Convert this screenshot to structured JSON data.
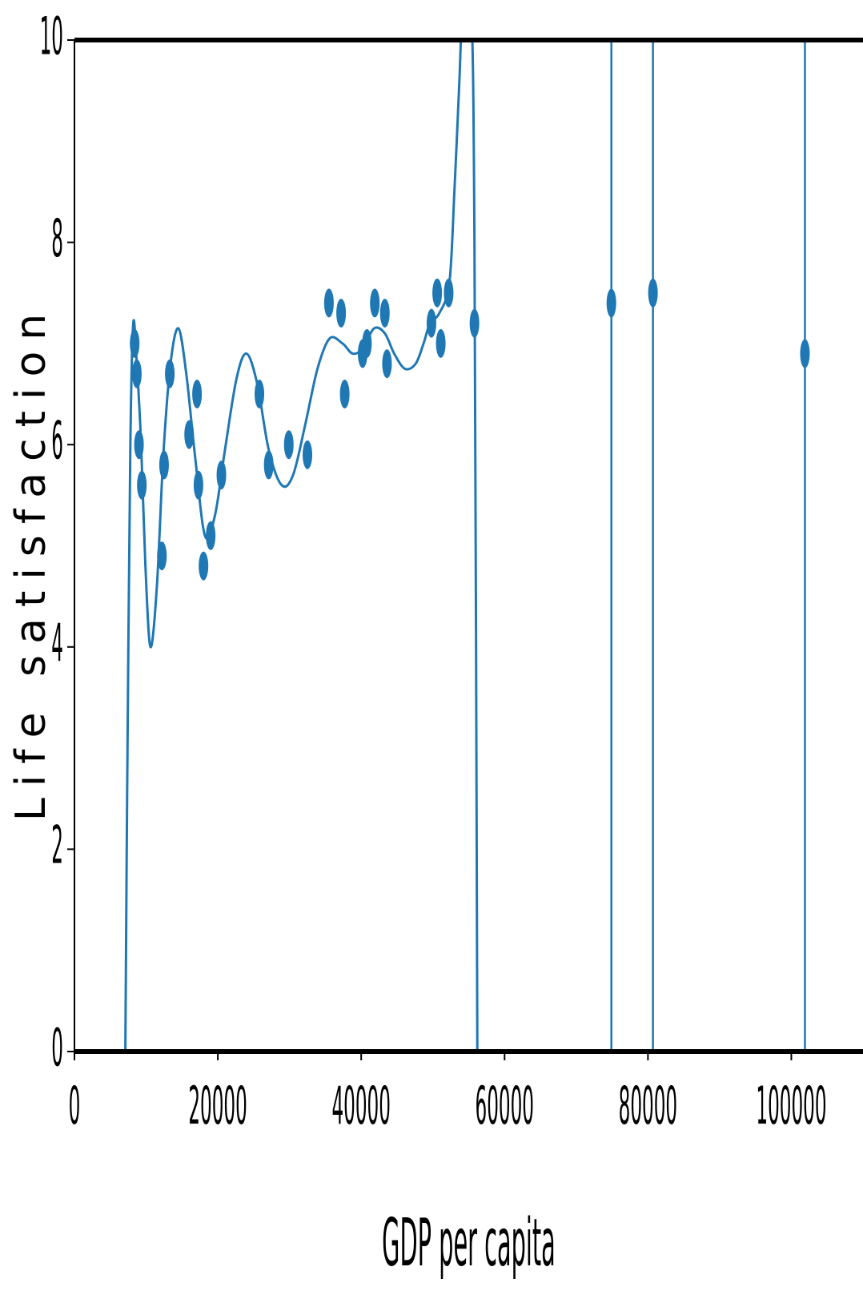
{
  "chart_data": {
    "type": "scatter",
    "xlabel": "GDP per capita",
    "ylabel": "Life satisfaction",
    "xlim": [
      0,
      110000
    ],
    "ylim": [
      0,
      10
    ],
    "xticks": [
      0,
      20000,
      40000,
      60000,
      80000,
      100000
    ],
    "yticks": [
      0,
      2,
      4,
      6,
      8,
      10
    ],
    "colors": {
      "series": "#1f77b4",
      "axis": "#000000",
      "background": "#ffffff"
    },
    "horizontal_reference_lines": [
      0,
      10
    ],
    "series": [
      {
        "type": "scatter",
        "points": [
          [
            8400,
            7.0
          ],
          [
            8700,
            6.7
          ],
          [
            9000,
            6.0
          ],
          [
            9400,
            5.6
          ],
          [
            12200,
            4.9
          ],
          [
            12500,
            5.8
          ],
          [
            13300,
            6.7
          ],
          [
            16000,
            6.1
          ],
          [
            17100,
            6.5
          ],
          [
            17300,
            5.6
          ],
          [
            18000,
            4.8
          ],
          [
            19000,
            5.1
          ],
          [
            20500,
            5.7
          ],
          [
            25800,
            6.5
          ],
          [
            27100,
            5.8
          ],
          [
            29900,
            6.0
          ],
          [
            32500,
            5.9
          ],
          [
            35500,
            7.4
          ],
          [
            37200,
            7.3
          ],
          [
            37700,
            6.5
          ],
          [
            40200,
            6.9
          ],
          [
            40800,
            7.0
          ],
          [
            41900,
            7.4
          ],
          [
            43300,
            7.3
          ],
          [
            43600,
            6.8
          ],
          [
            49800,
            7.2
          ],
          [
            50600,
            7.5
          ],
          [
            51100,
            7.0
          ],
          [
            52200,
            7.5
          ],
          [
            55800,
            7.2
          ],
          [
            74900,
            7.4
          ],
          [
            80700,
            7.5
          ],
          [
            101900,
            6.9
          ]
        ]
      },
      {
        "type": "line",
        "description_free": true,
        "points": [
          [
            7100,
            0.0
          ],
          [
            7400,
            3.0
          ],
          [
            7800,
            6.0
          ],
          [
            8200,
            7.2
          ],
          [
            8700,
            6.8
          ],
          [
            9300,
            6.0
          ],
          [
            9900,
            4.8
          ],
          [
            10600,
            4.0
          ],
          [
            11500,
            4.6
          ],
          [
            12400,
            5.9
          ],
          [
            13400,
            6.8
          ],
          [
            14500,
            7.15
          ],
          [
            15600,
            6.7
          ],
          [
            16800,
            5.9
          ],
          [
            18200,
            5.1
          ],
          [
            19600,
            5.3
          ],
          [
            21000,
            5.95
          ],
          [
            22600,
            6.65
          ],
          [
            24000,
            6.9
          ],
          [
            25500,
            6.6
          ],
          [
            27100,
            5.95
          ],
          [
            28900,
            5.6
          ],
          [
            30500,
            5.7
          ],
          [
            32200,
            6.2
          ],
          [
            33900,
            6.75
          ],
          [
            35600,
            7.05
          ],
          [
            37400,
            7.0
          ],
          [
            38800,
            6.9
          ],
          [
            40200,
            6.95
          ],
          [
            41800,
            7.15
          ],
          [
            43300,
            7.1
          ],
          [
            44600,
            6.9
          ],
          [
            46100,
            6.75
          ],
          [
            47600,
            6.8
          ],
          [
            48700,
            7.0
          ],
          [
            49600,
            7.2
          ],
          [
            50900,
            7.3
          ],
          [
            52300,
            7.6
          ],
          [
            53000,
            8.5
          ],
          [
            53700,
            9.6
          ],
          [
            54200,
            10.4
          ],
          [
            55300,
            10.4
          ],
          [
            55800,
            8.0
          ],
          [
            56200,
            0.0
          ]
        ]
      },
      {
        "type": "vline",
        "x_values": [
          74900,
          80700,
          101900
        ]
      }
    ]
  }
}
